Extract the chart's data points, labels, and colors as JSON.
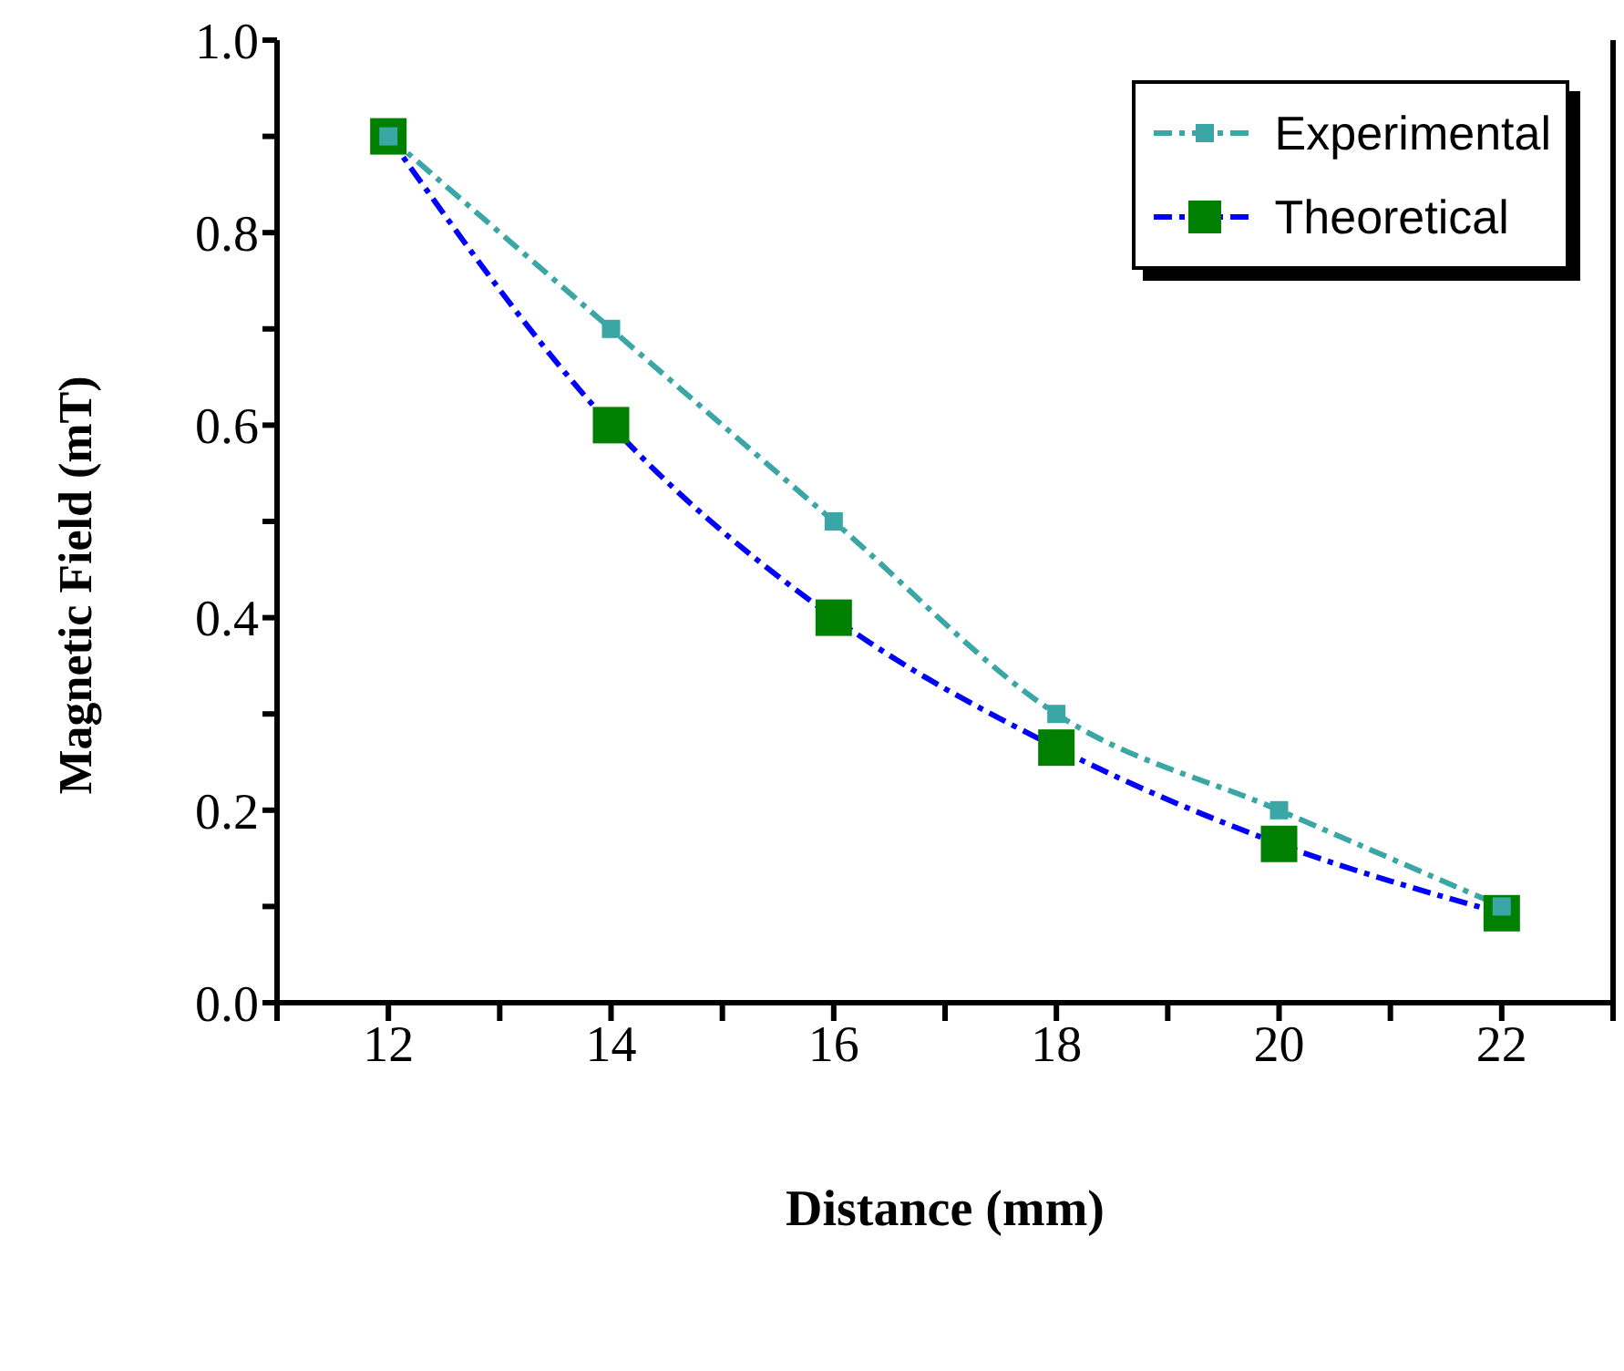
{
  "chart_data": {
    "type": "line",
    "xlabel": "Distance (mm)",
    "ylabel": "Magnetic Field (mT)",
    "xlim": [
      11,
      23
    ],
    "xticks": [
      {
        "value": 11,
        "label": null
      },
      12,
      {
        "value": 13,
        "label": null
      },
      14,
      {
        "value": 15,
        "label": null
      },
      16,
      {
        "value": 17,
        "label": null
      },
      18,
      {
        "value": 19,
        "label": null
      },
      20,
      {
        "value": 21,
        "label": null
      },
      22,
      {
        "value": 23,
        "label": null
      }
    ],
    "ylim": [
      0,
      1
    ],
    "yticks": [
      {
        "value": 0,
        "label": "0.0"
      },
      {
        "value": 0.1,
        "label": null
      },
      0.2,
      {
        "value": 0.3,
        "label": null
      },
      0.4,
      {
        "value": 0.5,
        "label": null
      },
      0.6,
      {
        "value": 0.7,
        "label": null
      },
      0.8,
      {
        "value": 0.9,
        "label": null
      },
      {
        "value": 1,
        "label": "1.0"
      }
    ],
    "x": [
      12,
      14,
      16,
      18,
      20,
      22
    ],
    "series": [
      {
        "name": "Experimental",
        "color": "#3aa6a6",
        "values": [
          0.9,
          0.7,
          0.5,
          0.3,
          0.2,
          0.1
        ],
        "marker": "square",
        "line_style": "dashed"
      },
      {
        "name": "Theoretical",
        "color": "#0000ff",
        "colors": [
          "#008000",
          "#008000",
          "#008000",
          "#008000",
          "#008000",
          "#008000"
        ],
        "values": [
          0.9,
          0.6,
          0.4,
          0.265,
          0.165,
          0.093
        ],
        "marker": "square",
        "line_style": "dashed"
      }
    ],
    "grid": false,
    "legend": "top right"
  }
}
